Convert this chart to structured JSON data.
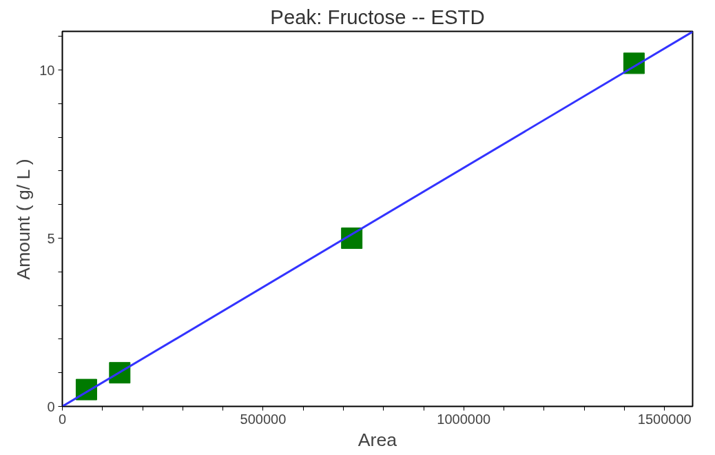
{
  "chart_data": {
    "type": "scatter",
    "title": "Peak: Fructose -- ESTD",
    "xlabel": "Area",
    "ylabel": "Amount ( g/ L )",
    "series": [
      {
        "color": "#007a00",
        "marker": "square",
        "x": [
          60000,
          143000,
          721000,
          1424000
        ],
        "values": [
          0.5,
          1.0,
          5.0,
          10.2
        ]
      },
      {
        "type": "line",
        "color": "#3333ff",
        "marker": "none",
        "line_style": "solid",
        "x": [
          0,
          1570000
        ],
        "values": [
          0,
          11.14
        ]
      }
    ],
    "xlim": [
      0,
      1570000
    ],
    "ylim": [
      0,
      11.15
    ],
    "xticks": [
      0,
      {
        "value": 100000,
        "label": null
      },
      {
        "value": 200000,
        "label": null
      },
      {
        "value": 300000,
        "label": null
      },
      {
        "value": 400000,
        "label": null
      },
      500000,
      {
        "value": 600000,
        "label": null
      },
      {
        "value": 700000,
        "label": null
      },
      {
        "value": 800000,
        "label": null
      },
      {
        "value": 900000,
        "label": null
      },
      1000000,
      {
        "value": 1100000,
        "label": null
      },
      {
        "value": 1200000,
        "label": null
      },
      {
        "value": 1300000,
        "label": null
      },
      {
        "value": 1400000,
        "label": null
      },
      1500000
    ],
    "yticks": [
      0,
      {
        "value": 1,
        "label": null
      },
      {
        "value": 2,
        "label": null
      },
      {
        "value": 3,
        "label": null
      },
      {
        "value": 4,
        "label": null
      },
      5,
      {
        "value": 6,
        "label": null
      },
      {
        "value": 7,
        "label": null
      },
      {
        "value": 8,
        "label": null
      },
      {
        "value": 9,
        "label": null
      },
      10,
      {
        "value": 11,
        "label": null
      }
    ],
    "grid": false
  }
}
